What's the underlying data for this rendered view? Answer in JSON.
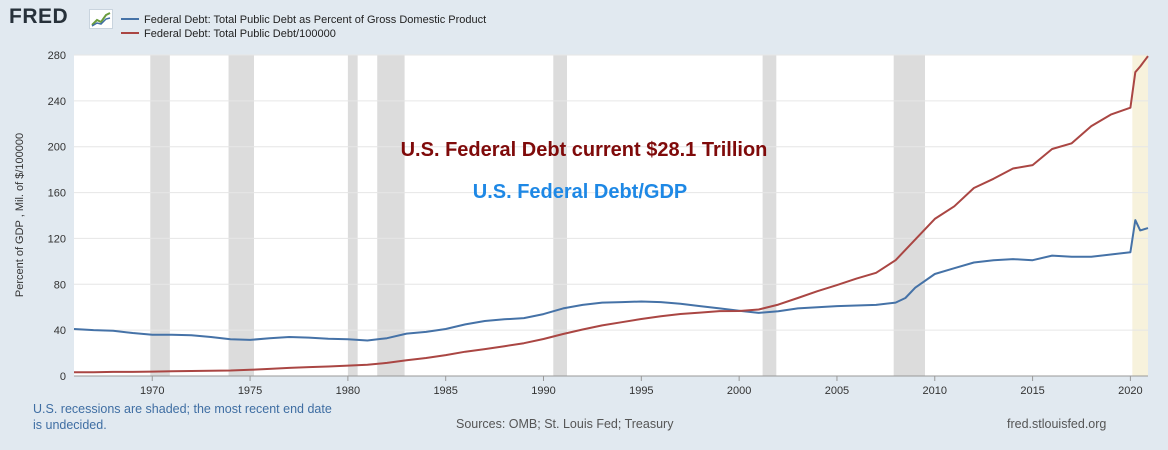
{
  "logo": {
    "text": "FRED"
  },
  "footer": {
    "note": "U.S. recessions are shaded; the most recent end date is undecided.",
    "sources": "Sources: OMB; St. Louis Fed; Treasury",
    "url": "fred.stlouisfed.org"
  },
  "colors": {
    "blue": "#4572a7",
    "red": "#aa4643",
    "recession": "#dcdcdc",
    "recent_recession": "#f7f2dc",
    "annot_red": "#7f0a0a",
    "annot_blue": "#1e88e5"
  },
  "chart_data": {
    "type": "line",
    "title": "",
    "xlabel": "",
    "ylabel": "Percent of GDP , Mil. of $/100000",
    "xlim": [
      1966,
      2020.9
    ],
    "ylim": [
      0,
      280
    ],
    "x_ticks": [
      1970,
      1975,
      1980,
      1985,
      1990,
      1995,
      2000,
      2005,
      2010,
      2015,
      2020
    ],
    "y_ticks": [
      0,
      40,
      80,
      120,
      160,
      200,
      240,
      280
    ],
    "grid": true,
    "legend": "top-left",
    "recessions": [
      [
        1969.9,
        1970.9
      ],
      [
        1973.9,
        1975.2
      ],
      [
        1980.0,
        1980.5
      ],
      [
        1981.5,
        1982.9
      ],
      [
        1990.5,
        1991.2
      ],
      [
        2001.2,
        2001.9
      ],
      [
        2007.9,
        2009.5
      ]
    ],
    "recent_recession": [
      2020.1,
      2020.9
    ],
    "annotations": [
      {
        "text": "U.S. Federal Debt current $28.1 Trillion",
        "style": "red"
      },
      {
        "text": "U.S. Federal Debt/GDP",
        "style": "blue"
      }
    ],
    "series": [
      {
        "name": "Federal Debt: Total Public Debt as Percent of Gross Domestic Product",
        "color": "#4572a7",
        "points": [
          [
            1966,
            41
          ],
          [
            1967,
            40
          ],
          [
            1968,
            39.5
          ],
          [
            1969,
            37.5
          ],
          [
            1970,
            36
          ],
          [
            1971,
            36
          ],
          [
            1972,
            35.5
          ],
          [
            1973,
            34
          ],
          [
            1974,
            32
          ],
          [
            1975,
            31.5
          ],
          [
            1976,
            33
          ],
          [
            1977,
            34
          ],
          [
            1978,
            33.5
          ],
          [
            1979,
            32.5
          ],
          [
            1980,
            32
          ],
          [
            1981,
            31
          ],
          [
            1982,
            33
          ],
          [
            1983,
            37
          ],
          [
            1984,
            38.5
          ],
          [
            1985,
            41
          ],
          [
            1986,
            45
          ],
          [
            1987,
            48
          ],
          [
            1988,
            49.5
          ],
          [
            1989,
            50.5
          ],
          [
            1990,
            54
          ],
          [
            1991,
            59
          ],
          [
            1992,
            62
          ],
          [
            1993,
            64
          ],
          [
            1994,
            64.5
          ],
          [
            1995,
            65
          ],
          [
            1996,
            64.5
          ],
          [
            1997,
            63
          ],
          [
            1998,
            61
          ],
          [
            1999,
            59
          ],
          [
            2000,
            57
          ],
          [
            2001,
            55
          ],
          [
            2002,
            56.5
          ],
          [
            2003,
            59
          ],
          [
            2004,
            60
          ],
          [
            2005,
            61
          ],
          [
            2006,
            61.5
          ],
          [
            2007,
            62
          ],
          [
            2008,
            64
          ],
          [
            2008.5,
            68
          ],
          [
            2009,
            77
          ],
          [
            2010,
            89
          ],
          [
            2011,
            94
          ],
          [
            2012,
            99
          ],
          [
            2013,
            101
          ],
          [
            2014,
            102
          ],
          [
            2015,
            101
          ],
          [
            2016,
            105
          ],
          [
            2017,
            104
          ],
          [
            2018,
            104
          ],
          [
            2019,
            106
          ],
          [
            2020,
            108
          ],
          [
            2020.25,
            136
          ],
          [
            2020.5,
            127
          ],
          [
            2020.9,
            129
          ]
        ]
      },
      {
        "name": "Federal Debt: Total Public Debt/100000",
        "color": "#aa4643",
        "points": [
          [
            1966,
            3.2
          ],
          [
            1967,
            3.3
          ],
          [
            1968,
            3.6
          ],
          [
            1969,
            3.6
          ],
          [
            1970,
            3.8
          ],
          [
            1971,
            4.1
          ],
          [
            1972,
            4.4
          ],
          [
            1973,
            4.6
          ],
          [
            1974,
            4.8
          ],
          [
            1975,
            5.4
          ],
          [
            1976,
            6.2
          ],
          [
            1977,
            7.1
          ],
          [
            1978,
            7.8
          ],
          [
            1979,
            8.3
          ],
          [
            1980,
            9.1
          ],
          [
            1981,
            9.9
          ],
          [
            1982,
            11.4
          ],
          [
            1983,
            13.7
          ],
          [
            1984,
            15.7
          ],
          [
            1985,
            18.2
          ],
          [
            1986,
            21.2
          ],
          [
            1987,
            23.5
          ],
          [
            1988,
            26
          ],
          [
            1989,
            28.6
          ],
          [
            1990,
            32.3
          ],
          [
            1991,
            36.6
          ],
          [
            1992,
            40.6
          ],
          [
            1993,
            44.1
          ],
          [
            1994,
            46.9
          ],
          [
            1995,
            49.7
          ],
          [
            1996,
            52.2
          ],
          [
            1997,
            54.1
          ],
          [
            1998,
            55.3
          ],
          [
            1999,
            56.6
          ],
          [
            2000,
            56.7
          ],
          [
            2001,
            58
          ],
          [
            2002,
            62.3
          ],
          [
            2003,
            68
          ],
          [
            2004,
            74
          ],
          [
            2005,
            79.3
          ],
          [
            2006,
            85
          ],
          [
            2007,
            90
          ],
          [
            2008,
            101
          ],
          [
            2009,
            119
          ],
          [
            2010,
            137
          ],
          [
            2011,
            148
          ],
          [
            2012,
            164
          ],
          [
            2013,
            172
          ],
          [
            2014,
            181
          ],
          [
            2015,
            184
          ],
          [
            2016,
            198
          ],
          [
            2017,
            203
          ],
          [
            2018,
            218
          ],
          [
            2019,
            228
          ],
          [
            2020,
            234
          ],
          [
            2020.25,
            265
          ],
          [
            2020.5,
            270
          ],
          [
            2020.9,
            279
          ]
        ]
      }
    ]
  }
}
